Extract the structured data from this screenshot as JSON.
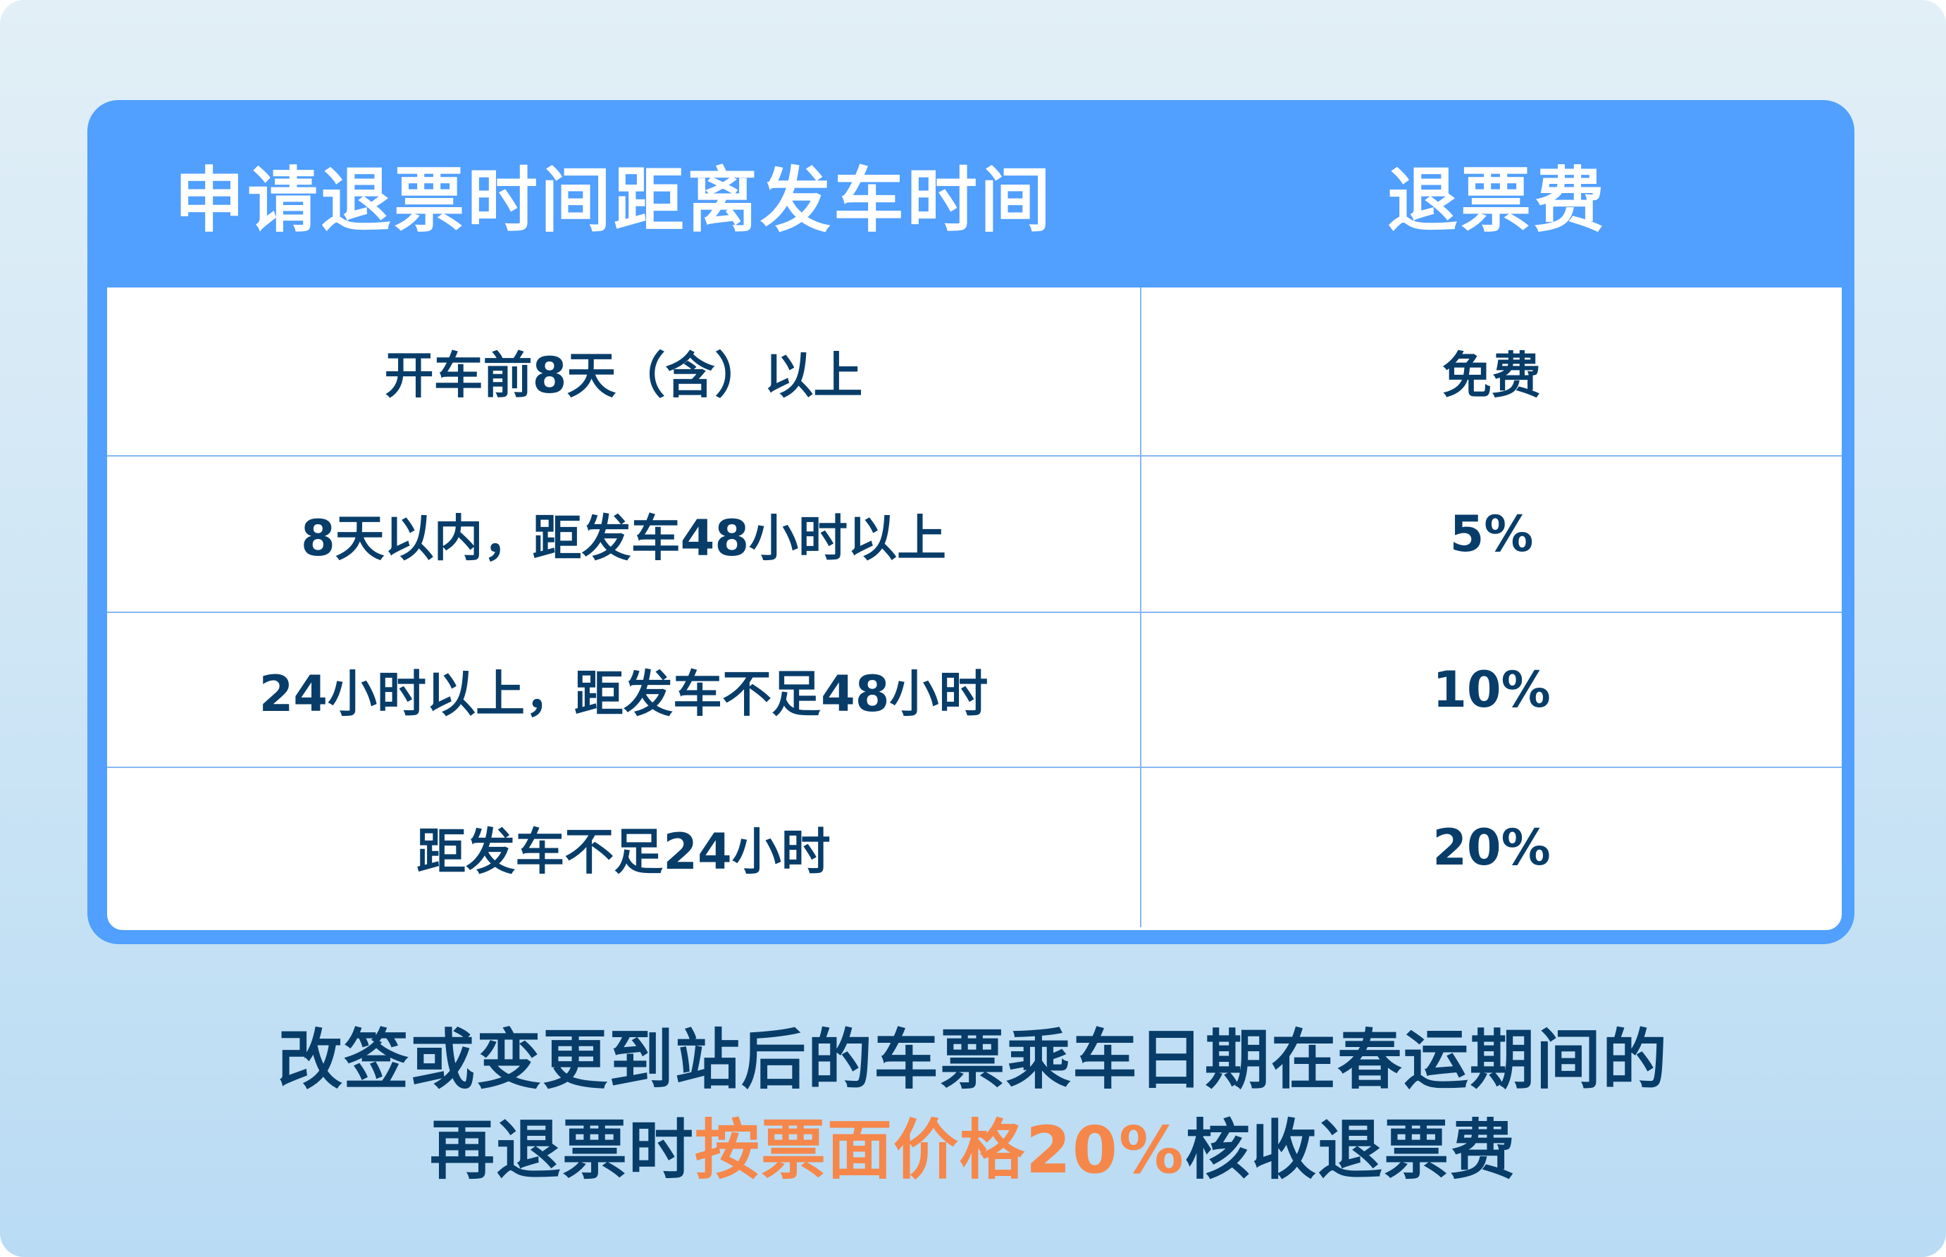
{
  "table": {
    "headers": [
      "申请退票时间距离发车时间",
      "退票费"
    ],
    "rows": [
      {
        "time": "开车前8天（含）以上",
        "fee": "免费"
      },
      {
        "time": "8天以内，距发车48小时以上",
        "fee": "5%"
      },
      {
        "time": "24小时以上，距发车不足48小时",
        "fee": "10%"
      },
      {
        "time": "距发车不足24小时",
        "fee": "20%"
      }
    ]
  },
  "note": {
    "line1": "改签或变更到站后的车票乘车日期在春运期间的",
    "line2_before": "再退票时",
    "line2_highlight": "按票面价格20%",
    "line2_after": "核收退票费"
  },
  "colors": {
    "header_blue": "#519ffe",
    "text_navy": "#083d69",
    "highlight_orange": "#f5874b"
  }
}
